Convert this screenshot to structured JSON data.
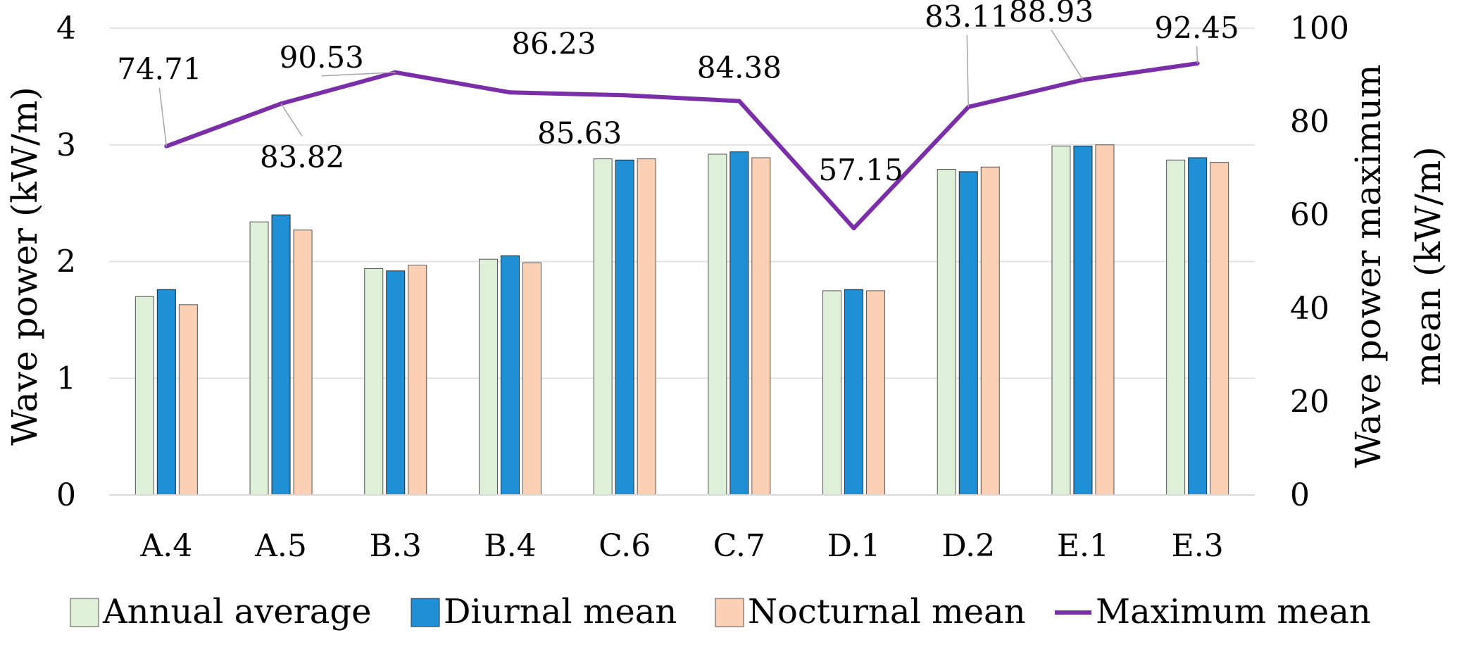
{
  "chart_data": {
    "type": "bar",
    "title": "",
    "xlabel": "",
    "ylabel": "Wave power (kW/m)",
    "y2label_line1": "Wave power maximum",
    "y2label_line2": "mean (kW/m)",
    "ylim": [
      0,
      4
    ],
    "yticks": [
      0,
      1,
      2,
      3,
      4
    ],
    "y2lim": [
      0,
      100
    ],
    "y2ticks": [
      0,
      20,
      40,
      60,
      80,
      100
    ],
    "grid": true,
    "legend_position": "bottom",
    "categories": [
      "A.4",
      "A.5",
      "B.3",
      "B.4",
      "C.6",
      "C.7",
      "D.1",
      "D.2",
      "E.1",
      "E.3"
    ],
    "series": [
      {
        "name": "Annual average",
        "axis": "left",
        "kind": "bar",
        "color": "#dff0d8",
        "values": [
          1.7,
          2.34,
          1.94,
          2.02,
          2.88,
          2.92,
          1.75,
          2.79,
          2.99,
          2.87
        ]
      },
      {
        "name": "Diurnal mean",
        "axis": "left",
        "kind": "bar",
        "color": "#1f8fd6",
        "values": [
          1.76,
          2.4,
          1.92,
          2.05,
          2.87,
          2.94,
          1.76,
          2.77,
          2.99,
          2.89
        ]
      },
      {
        "name": "Nocturnal mean",
        "axis": "left",
        "kind": "bar",
        "color": "#fcd0b4",
        "values": [
          1.63,
          2.27,
          1.97,
          1.99,
          2.88,
          2.89,
          1.75,
          2.81,
          3.0,
          2.85
        ]
      },
      {
        "name": "Maximum mean",
        "axis": "right",
        "kind": "line",
        "color": "#7a2fa8",
        "values": [
          74.71,
          83.82,
          90.53,
          86.23,
          85.63,
          84.38,
          57.15,
          83.11,
          88.93,
          92.45
        ],
        "labels": [
          "74.71",
          "83.82",
          "90.53",
          "86.23",
          "85.63",
          "84.38",
          "57.15",
          "83.11",
          "88.93",
          "92.45"
        ]
      }
    ]
  }
}
